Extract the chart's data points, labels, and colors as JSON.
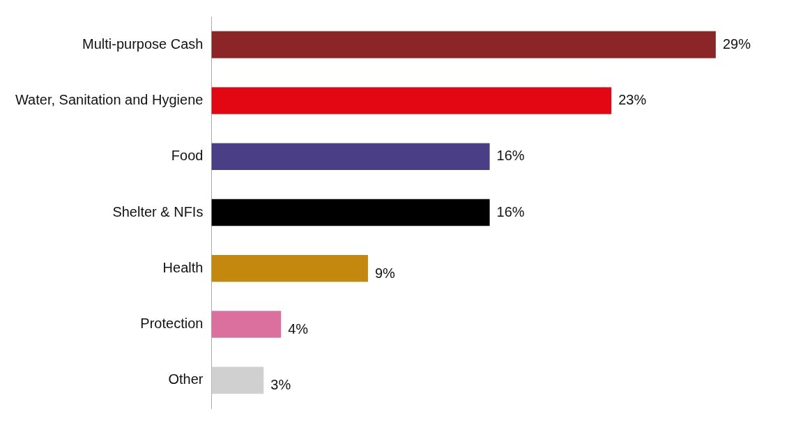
{
  "chart_data": {
    "type": "bar",
    "orientation": "horizontal",
    "categories": [
      "Multi-purpose Cash",
      "Water, Sanitation and Hygiene",
      "Food",
      "Shelter & NFIs",
      "Health",
      "Protection",
      "Other"
    ],
    "values": [
      29,
      23,
      16,
      16,
      9,
      4,
      3
    ],
    "colors": [
      "#8b2527",
      "#e30613",
      "#4a3f87",
      "#000000",
      "#c4880f",
      "#db6f9e",
      "#d0d0d0"
    ],
    "value_labels": [
      "29%",
      "23%",
      "16%",
      "16%",
      "9%",
      "4%",
      "3%"
    ]
  }
}
